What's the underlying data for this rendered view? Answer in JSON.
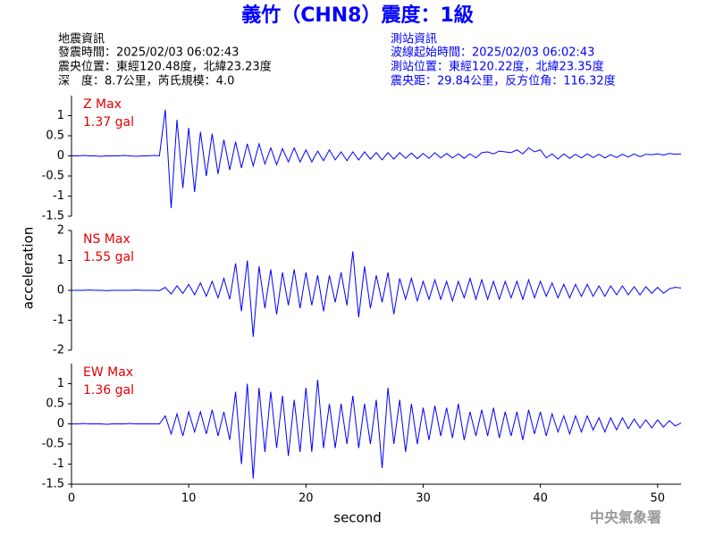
{
  "title": "義竹（CHN8）震度：1級",
  "info_left": [
    "地震資訊",
    "發震時間：2025/02/03 06:02:43",
    "震央位置：東經120.48度，北緯23.23度",
    "深　度：8.7公里，芮氏規模：4.0"
  ],
  "info_right": [
    "測站資訊",
    "波線起始時間：2025/02/03 06:02:43",
    "測站位置：東經120.22度，北緯23.35度",
    "震央距：29.84公里，反方位角：116.32度"
  ],
  "y_label": "acceleration",
  "footer": "中央氣象署",
  "time_axis": {
    "label": "second",
    "xlim": [
      0,
      52
    ],
    "xticks": [
      0,
      10,
      20,
      30,
      40,
      50
    ],
    "x": [
      0,
      0.5,
      1,
      1.5,
      2,
      2.5,
      3,
      3.5,
      4,
      4.5,
      5,
      5.5,
      6,
      6.5,
      7,
      7.5,
      8,
      8.5,
      9,
      9.5,
      10,
      10.5,
      11,
      11.5,
      12,
      12.5,
      13,
      13.5,
      14,
      14.5,
      15,
      15.5,
      16,
      16.5,
      17,
      17.5,
      18,
      18.5,
      19,
      19.5,
      20,
      20.5,
      21,
      21.5,
      22,
      22.5,
      23,
      23.5,
      24,
      24.5,
      25,
      25.5,
      26,
      26.5,
      27,
      27.5,
      28,
      28.5,
      29,
      29.5,
      30,
      30.5,
      31,
      31.5,
      32,
      32.5,
      33,
      33.5,
      34,
      34.5,
      35,
      35.5,
      36,
      36.5,
      37,
      37.5,
      38,
      38.5,
      39,
      39.5,
      40,
      40.5,
      41,
      41.5,
      42,
      42.5,
      43,
      43.5,
      44,
      44.5,
      45,
      45.5,
      46,
      46.5,
      47,
      47.5,
      48,
      48.5,
      49,
      49.5,
      50,
      50.5,
      51,
      51.5,
      52
    ]
  },
  "chart_data": [
    {
      "type": "line",
      "label": "Z Max",
      "max_label": "1.37 gal",
      "color": "#0000ff",
      "ylim": [
        -1.5,
        1.5
      ],
      "yticks": [
        -1.5,
        -1,
        -0.5,
        0,
        0.5,
        1
      ],
      "values": [
        0,
        0,
        0.01,
        0,
        0,
        -0.01,
        0,
        0,
        0,
        0.01,
        0,
        -0.01,
        0,
        0,
        0.01,
        0,
        1.15,
        -1.3,
        0.9,
        -0.8,
        0.7,
        -0.9,
        0.6,
        -0.5,
        0.55,
        -0.45,
        0.4,
        -0.35,
        0.35,
        -0.3,
        0.3,
        -0.25,
        0.3,
        -0.2,
        0.2,
        -0.22,
        0.18,
        -0.15,
        0.2,
        -0.15,
        0.15,
        -0.15,
        0.12,
        -0.12,
        0.15,
        -0.1,
        0.1,
        -0.12,
        0.1,
        -0.1,
        0.1,
        -0.08,
        0.08,
        -0.1,
        0.08,
        -0.08,
        0.08,
        -0.06,
        0.07,
        -0.07,
        0.06,
        -0.06,
        0.08,
        -0.05,
        0.06,
        -0.05,
        0.05,
        -0.06,
        0.05,
        -0.05,
        0.08,
        0.1,
        0.05,
        0.12,
        0.1,
        0.08,
        0.15,
        0.05,
        0.2,
        0.1,
        0.15,
        -0.05,
        0.05,
        -0.08,
        0.05,
        -0.06,
        0.04,
        -0.05,
        0.05,
        -0.04,
        0.04,
        -0.05,
        0.03,
        -0.04,
        0.04,
        -0.03,
        0.05,
        -0.02,
        0.04,
        0.03,
        0.05,
        0.02,
        0.06,
        0.04,
        0.05
      ]
    },
    {
      "type": "line",
      "label": "NS Max",
      "max_label": "1.55 gal",
      "color": "#0000ff",
      "ylim": [
        -2,
        2
      ],
      "yticks": [
        -2,
        -1,
        0,
        1,
        2
      ],
      "values": [
        0,
        0,
        0,
        0.01,
        0,
        0,
        -0.01,
        0,
        0,
        0,
        0,
        0.01,
        0,
        0,
        0,
        -0.01,
        0.1,
        -0.12,
        0.15,
        -0.1,
        0.2,
        -0.15,
        0.25,
        -0.2,
        0.3,
        -0.25,
        0.4,
        -0.3,
        0.9,
        -0.7,
        1.0,
        -1.55,
        0.8,
        -0.6,
        0.7,
        -0.8,
        0.6,
        -0.5,
        0.7,
        -0.6,
        0.6,
        -0.5,
        0.5,
        -0.7,
        0.5,
        -0.4,
        0.6,
        -0.5,
        1.3,
        -0.9,
        0.8,
        -0.6,
        0.5,
        -0.4,
        0.6,
        -0.8,
        0.4,
        -0.3,
        0.4,
        -0.35,
        0.3,
        -0.3,
        0.35,
        -0.3,
        0.3,
        -0.35,
        0.3,
        -0.25,
        0.4,
        -0.3,
        0.35,
        -0.3,
        0.3,
        -0.3,
        0.3,
        -0.25,
        0.3,
        -0.3,
        0.35,
        -0.25,
        0.3,
        -0.2,
        0.25,
        -0.25,
        0.2,
        -0.25,
        0.2,
        -0.2,
        0.2,
        -0.2,
        0.15,
        -0.2,
        0.15,
        -0.15,
        0.15,
        -0.15,
        0.12,
        -0.15,
        0.12,
        -0.1,
        0.1,
        -0.1,
        0.05,
        0.1,
        0.08
      ]
    },
    {
      "type": "line",
      "label": "EW Max",
      "max_label": "1.36 gal",
      "color": "#0000ff",
      "ylim": [
        -1.5,
        1.5
      ],
      "yticks": [
        -1.5,
        -1,
        -0.5,
        0,
        0.5,
        1
      ],
      "values": [
        0,
        0,
        0.01,
        0,
        0,
        0,
        -0.01,
        0,
        0,
        0,
        0.01,
        0,
        0,
        0,
        0,
        0,
        0.2,
        -0.25,
        0.25,
        -0.3,
        0.3,
        -0.2,
        0.3,
        -0.25,
        0.35,
        -0.3,
        0.3,
        -0.4,
        0.8,
        -1.0,
        1.0,
        -1.36,
        0.9,
        -0.7,
        0.8,
        -0.6,
        0.7,
        -0.8,
        0.6,
        -0.7,
        0.9,
        -0.7,
        1.1,
        -0.6,
        0.5,
        -0.6,
        0.5,
        -0.5,
        0.7,
        -0.6,
        0.5,
        -0.5,
        0.6,
        -1.1,
        0.9,
        -0.5,
        0.6,
        -0.7,
        0.5,
        -0.5,
        0.4,
        -0.4,
        0.45,
        -0.3,
        0.4,
        -0.35,
        0.5,
        -0.4,
        0.3,
        -0.3,
        0.35,
        -0.3,
        0.4,
        -0.35,
        0.3,
        -0.3,
        0.3,
        -0.4,
        0.35,
        -0.25,
        0.3,
        -0.3,
        0.25,
        -0.2,
        0.2,
        -0.25,
        0.2,
        -0.2,
        0.2,
        -0.15,
        0.15,
        -0.2,
        0.15,
        -0.15,
        0.15,
        -0.12,
        0.12,
        -0.1,
        0.1,
        -0.1,
        0.1,
        -0.08,
        0.08,
        -0.05,
        0.02
      ]
    }
  ]
}
